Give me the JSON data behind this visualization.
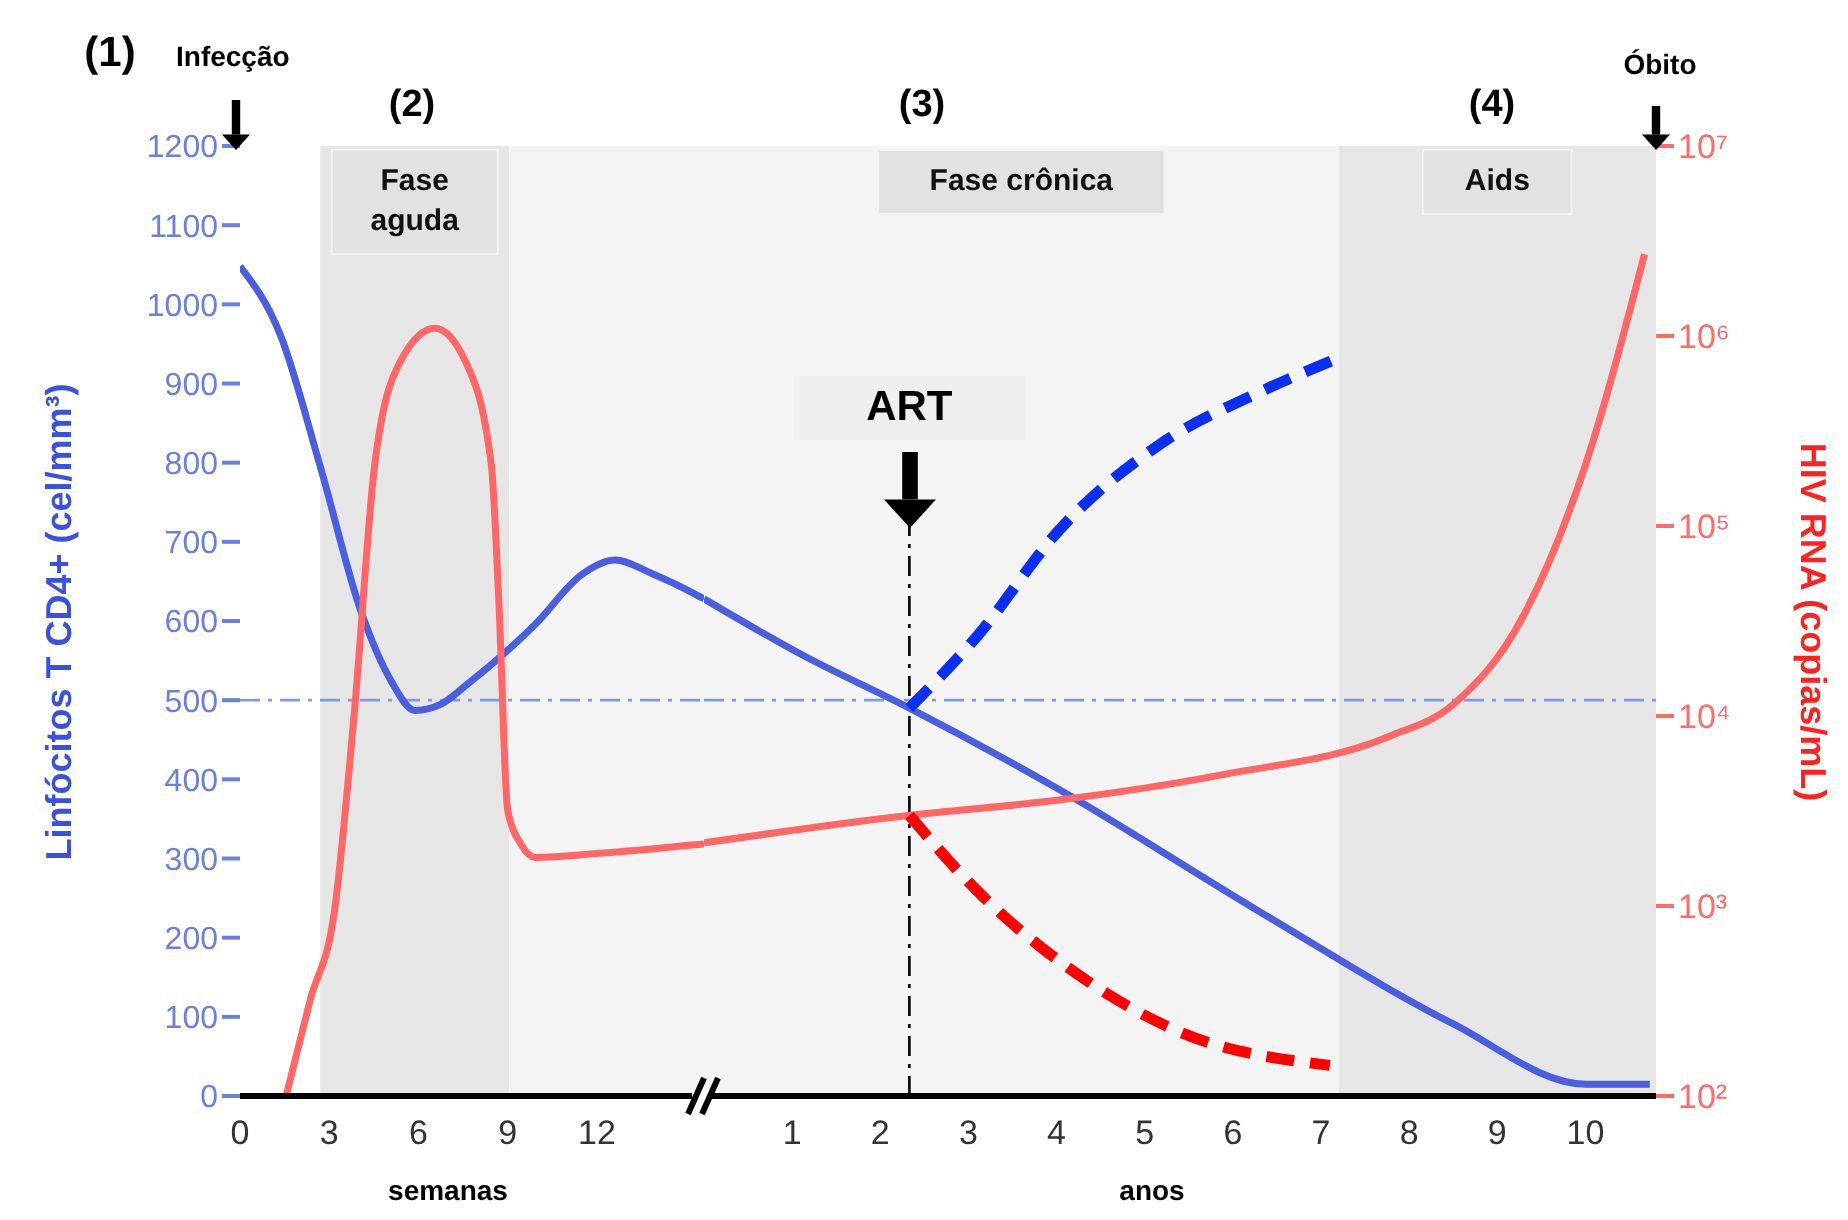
{
  "chart_data": [
    {
      "type": "line",
      "ylabel": "Linfócitos T CD4+ (cel/mm³)",
      "xlabel": "semanas",
      "annotations": [
        "(1)",
        "Infecção",
        "(2)"
      ],
      "xlim": [
        0,
        15.6
      ],
      "xticks": [
        0,
        3,
        6,
        9,
        12
      ],
      "ylim": [
        0,
        1200
      ],
      "yticks": [
        0,
        100,
        200,
        300,
        400,
        500,
        600,
        700,
        800,
        900,
        1000,
        1100,
        1200
      ],
      "y2lim": [
        100,
        10000000
      ],
      "log": "y2",
      "tick_labels": "xy",
      "bands": [
        {
          "axis": "x",
          "from": 2.7,
          "to": 9.05,
          "label": "Fase aguda",
          "color": "#e6e6e6"
        },
        {
          "axis": "x",
          "from": 9.05,
          "to": 15.6,
          "color": "#f4f4f4"
        }
      ],
      "ref_lines": [
        {
          "axis": "y",
          "value": 500,
          "color": "#7f9be0",
          "line_style": "dashed"
        }
      ],
      "series": [
        {
          "color": "#4a5fe0",
          "line_style": "solid",
          "axis": "y",
          "x": [
            0,
            1.35,
            2.7,
            4.05,
            5.07,
            5.88,
            6.76,
            7.64,
            9.93,
            11.5,
            12.6,
            13.9,
            15.3,
            15.6
          ],
          "values": [
            1048,
            962,
            795,
            614,
            525,
            487,
            495,
            520,
            596,
            659,
            677,
            659,
            634,
            628
          ]
        },
        {
          "color": "#ff6666",
          "line_style": "solid",
          "axis": "y2",
          "x": [
            1.55,
            2.36,
            3.18,
            3.85,
            4.53,
            5.4,
            6.55,
            7.57,
            8.45,
            8.7,
            9.0,
            9.46,
            9.93,
            12.2,
            15.3,
            15.6
          ],
          "values": [
            100,
            320,
            950,
            10700,
            210000,
            740000,
            1100000,
            740000,
            210000,
            41000,
            3200,
            2100,
            1800,
            1900,
            2100,
            2120
          ]
        }
      ]
    },
    {
      "type": "line",
      "xlabel": "anos",
      "y2label": "HIV RNA (copias/mL)",
      "annotations": [
        "(3)",
        "(4)",
        "Óbito"
      ],
      "xlim": [
        0,
        10.8
      ],
      "xticks": [
        1,
        2,
        3,
        4,
        5,
        6,
        7,
        8,
        9,
        10
      ],
      "ylim": [
        0,
        1200
      ],
      "y2lim": [
        100,
        10000000
      ],
      "y2ticks": [
        {
          "value": 100,
          "label": "10²"
        },
        {
          "value": 1000,
          "label": "10³"
        },
        {
          "value": 10000,
          "label": "10⁴"
        },
        {
          "value": 100000,
          "label": "10⁵"
        },
        {
          "value": 1000000,
          "label": "10⁶"
        },
        {
          "value": 10000000,
          "label": "10⁷"
        }
      ],
      "log": "y2",
      "tick_labels": "xy2",
      "bands": [
        {
          "axis": "x",
          "from": 0,
          "to": 7.2,
          "label": "Fase crônica",
          "color": "#f4f4f4"
        },
        {
          "axis": "x",
          "from": 7.2,
          "to": 10.8,
          "label": "Aids",
          "color": "#e6e6e6"
        }
      ],
      "ref_lines": [
        {
          "axis": "y",
          "value": 500,
          "color": "#7f9be0",
          "line_style": "dashed"
        },
        {
          "axis": "x",
          "value": 2.33,
          "label": "ART",
          "color": "#000000",
          "line_style": "dashed"
        }
      ],
      "series": [
        {
          "color": "#4a5fe0",
          "line_style": "solid",
          "axis": "y",
          "x": [
            0,
            1.1,
            2.33,
            4,
            6.27,
            8.5,
            10,
            10.73
          ],
          "values": [
            628,
            558,
            490,
            389,
            235,
            91,
            15,
            15
          ]
        },
        {
          "color": "#0a2ff0",
          "line_style": "dashed",
          "axis": "y",
          "x": [
            2.33,
            3.1,
            4.03,
            5.17,
            6.3,
            7.13
          ],
          "values": [
            490,
            581,
            715,
            823,
            889,
            929
          ]
        },
        {
          "color": "#ff6666",
          "line_style": "solid",
          "axis": "y2",
          "x": [
            0,
            2.33,
            4,
            5.87,
            7.77,
            8.5,
            9.27,
            10,
            10.67
          ],
          "values": [
            2150,
            3000,
            3600,
            4900,
            7800,
            11500,
            32000,
            210000,
            2700000
          ]
        },
        {
          "color": "#ff0000",
          "line_style": "dashed",
          "axis": "y2",
          "x": [
            2.33,
            3.1,
            4.23,
            5.37,
            7.1
          ],
          "values": [
            3000,
            1200,
            440,
            220,
            145
          ]
        }
      ]
    }
  ]
}
